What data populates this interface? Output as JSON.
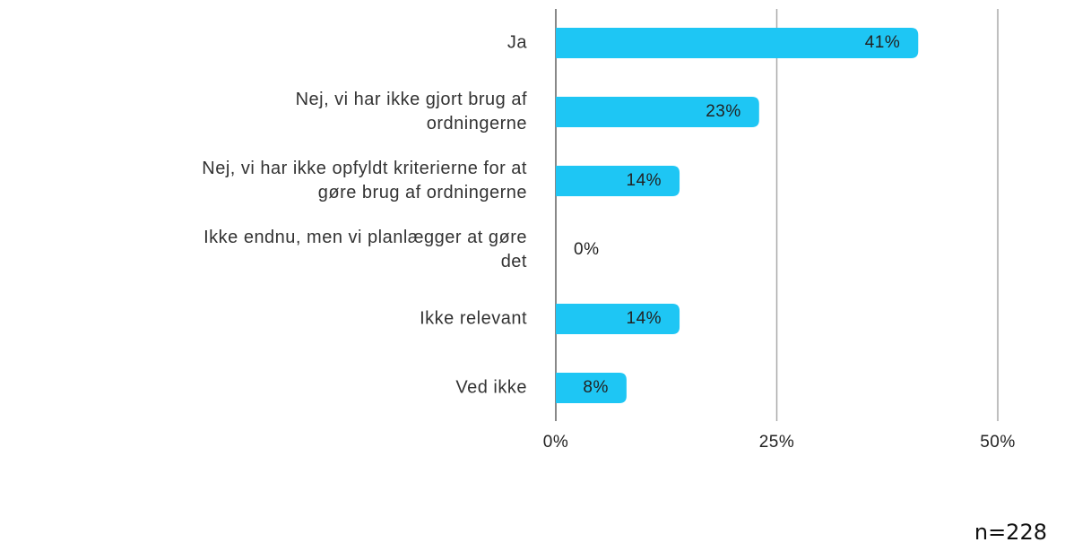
{
  "chart_data": {
    "type": "barh",
    "categories": [
      "Ja",
      "Nej, vi har ikke gjort brug af\nordningerne",
      "Nej, vi har ikke opfyldt kriterierne for at\ngøre brug af ordningerne",
      "Ikke endnu, men vi planlægger at gøre\ndet",
      "Ikke relevant",
      "Ved ikke"
    ],
    "values": [
      41,
      23,
      14,
      0,
      14,
      8
    ],
    "value_labels": [
      "41%",
      "23%",
      "14%",
      "0%",
      "14%",
      "8%"
    ],
    "color": "#1ec6f4",
    "xlim": [
      0,
      50
    ],
    "xticks": [
      {
        "value": 0,
        "label": "0%"
      },
      {
        "value": 25,
        "label": "25%"
      },
      {
        "value": 50,
        "label": "50%"
      }
    ],
    "grid": true,
    "note": "n=228"
  }
}
